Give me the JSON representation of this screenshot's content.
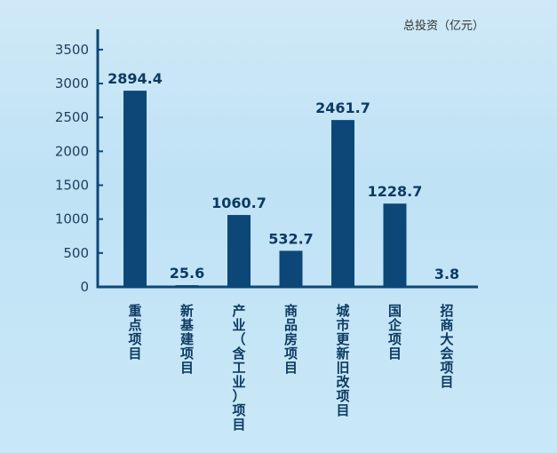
{
  "chart_data": {
    "type": "bar",
    "unit_label": "总投资（亿元）",
    "categories": [
      "重点项目",
      "新基建项目",
      "产业（含工业）项目",
      "商品房项目",
      "城市更新旧改项目",
      "国企项目",
      "招商大会项目"
    ],
    "values": [
      2894.4,
      25.6,
      1060.7,
      532.7,
      2461.7,
      1228.7,
      3.8
    ],
    "value_labels": [
      "2894.4",
      "25.6",
      "1060.7",
      "532.7",
      "2461.7",
      "1228.7",
      "3.8"
    ],
    "y_ticks": [
      0,
      500,
      1000,
      1500,
      2000,
      2500,
      3000,
      3500
    ],
    "ylim": [
      0,
      3800
    ],
    "grid": false,
    "legend": "none",
    "bar_color": "#0d4777",
    "axis_color": "#0d4777"
  }
}
